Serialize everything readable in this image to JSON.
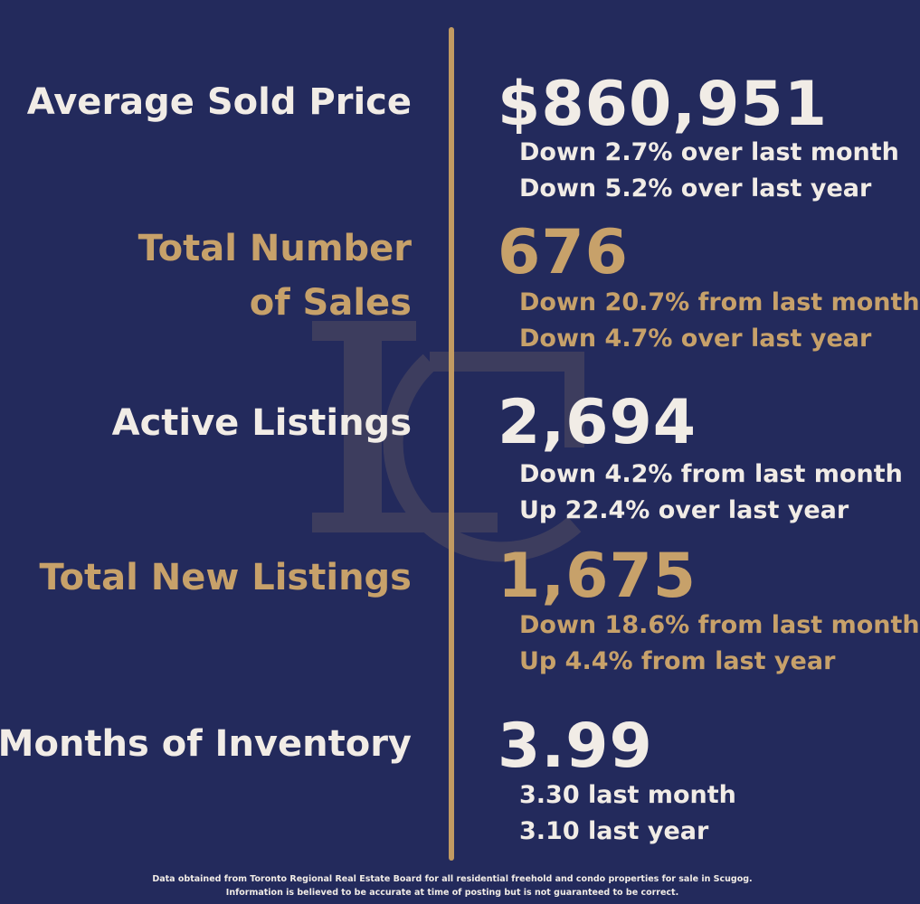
{
  "colors": {
    "background": "#232a5c",
    "accent_gold": "#c7a16a",
    "text_light": "#f1ece6"
  },
  "stats": [
    {
      "label": "Average Sold Price",
      "value": "$860,951",
      "line1": "Down 2.7% over last month",
      "line2": "Down 5.2% over last year"
    },
    {
      "label_line1": "Total Number",
      "label_line2": "of Sales",
      "value": "676",
      "line1": "Down 20.7% from last month",
      "line2": "Down 4.7% over last year"
    },
    {
      "label": "Active Listings",
      "value": "2,694",
      "line1": "Down 4.2% from last month",
      "line2": "Up 22.4% over last year"
    },
    {
      "label": "Total New Listings",
      "value": "1,675",
      "line1": "Down 18.6% from last month",
      "line2": "Up 4.4% from last year"
    },
    {
      "label": "Months of Inventory",
      "value": "3.99",
      "line1": "3.30 last month",
      "line2": "3.10 last year"
    }
  ],
  "footnote": {
    "line1": "Data obtained from Toronto Regional Real Estate Board for all residential freehold and condo properties for sale in Scugog.",
    "line2": "Information is believed to be accurate at time of posting but is not guaranteed to be correct."
  }
}
